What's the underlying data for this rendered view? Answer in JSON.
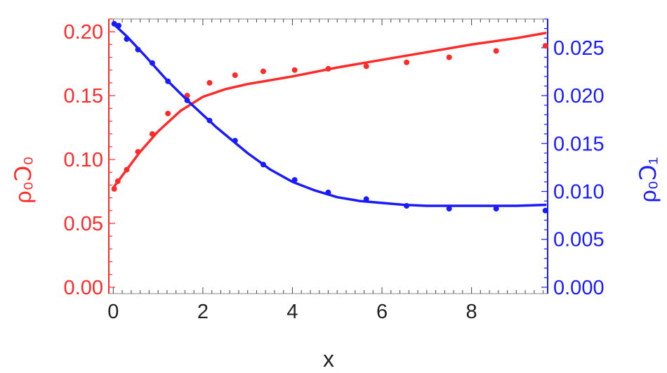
{
  "chart_data": {
    "type": "line",
    "xlabel": "x",
    "ylabel_left": "ρ₀Ↄ₀",
    "ylabel_right": "ρ₀Ↄ₁",
    "xlim": [
      -0.1,
      9.7
    ],
    "ylim_left": [
      -0.005,
      0.21
    ],
    "ylim_right": [
      -0.000667,
      0.028
    ],
    "x_ticks": [
      0,
      2,
      4,
      6,
      8
    ],
    "x_tick_labels": [
      "0",
      "2",
      "4",
      "6",
      "8"
    ],
    "y_left_ticks": [
      0.0,
      0.05,
      0.1,
      0.15,
      0.2
    ],
    "y_left_tick_labels": [
      "0.00",
      "0.05",
      "0.10",
      "0.15",
      "0.20"
    ],
    "y_right_ticks": [
      0.0,
      0.005,
      0.01,
      0.015,
      0.02,
      0.025
    ],
    "y_right_tick_labels": [
      "0.000",
      "0.005",
      "0.010",
      "0.015",
      "0.020",
      "0.025"
    ],
    "grid": false,
    "series": [
      {
        "axis": "left",
        "color": "#ff2a2a",
        "line": {
          "x": [
            0,
            0.3,
            0.6,
            1.0,
            1.5,
            2.0,
            2.5,
            3.0,
            4.0,
            5.0,
            6.0,
            7.0,
            8.0,
            9.0,
            9.65
          ],
          "y": [
            0.078,
            0.092,
            0.106,
            0.122,
            0.138,
            0.149,
            0.155,
            0.159,
            0.165,
            0.172,
            0.178,
            0.184,
            0.19,
            0.195,
            0.199
          ]
        },
        "points": {
          "x": [
            0.02,
            0.1,
            0.3,
            0.55,
            0.87,
            1.22,
            1.65,
            2.15,
            2.72,
            3.35,
            4.05,
            4.8,
            5.65,
            6.55,
            7.5,
            8.55,
            9.65
          ],
          "y": [
            0.077,
            0.083,
            0.092,
            0.106,
            0.12,
            0.136,
            0.15,
            0.16,
            0.166,
            0.169,
            0.17,
            0.171,
            0.173,
            0.176,
            0.18,
            0.185,
            0.189
          ]
        }
      },
      {
        "axis": "right",
        "color": "#1a1aff",
        "line": {
          "x": [
            0,
            0.3,
            0.7,
            1.2,
            1.7,
            2.3,
            3.0,
            3.5,
            4.0,
            4.5,
            5.0,
            5.5,
            6.0,
            6.5,
            7.0,
            7.5,
            8.0,
            8.5,
            9.0,
            9.65
          ],
          "y": [
            0.0275,
            0.0262,
            0.0242,
            0.0216,
            0.0193,
            0.0167,
            0.014,
            0.0123,
            0.011,
            0.0101,
            0.0094,
            0.009,
            0.0088,
            0.0086,
            0.0085,
            0.0085,
            0.0085,
            0.0085,
            0.0085,
            0.0086
          ]
        },
        "points": {
          "x": [
            0.02,
            0.12,
            0.3,
            0.55,
            0.87,
            1.22,
            1.65,
            2.15,
            2.72,
            3.35,
            4.05,
            4.8,
            5.65,
            6.55,
            7.5,
            8.55,
            9.65
          ],
          "y": [
            0.0275,
            0.0273,
            0.0259,
            0.0248,
            0.0234,
            0.0215,
            0.0195,
            0.0174,
            0.0153,
            0.0128,
            0.0112,
            0.0099,
            0.0092,
            0.0085,
            0.0082,
            0.0082,
            0.008
          ]
        }
      }
    ]
  }
}
